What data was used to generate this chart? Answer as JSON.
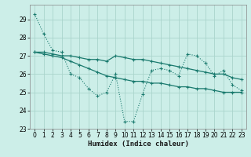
{
  "xlabel": "Humidex (Indice chaleur)",
  "background_color": "#cceee8",
  "grid_color": "#aad4cc",
  "line_color": "#1a7a6e",
  "xlim": [
    -0.5,
    23.5
  ],
  "ylim": [
    23,
    29.8
  ],
  "xticks": [
    0,
    1,
    2,
    3,
    4,
    5,
    6,
    7,
    8,
    9,
    10,
    11,
    12,
    13,
    14,
    15,
    16,
    17,
    18,
    19,
    20,
    21,
    22,
    23
  ],
  "yticks": [
    23,
    24,
    25,
    26,
    27,
    28,
    29
  ],
  "line1": [
    29.3,
    28.2,
    27.3,
    27.2,
    26.0,
    25.8,
    25.2,
    24.8,
    25.0,
    26.0,
    23.4,
    23.4,
    24.9,
    26.2,
    26.3,
    26.2,
    25.9,
    27.1,
    27.0,
    26.6,
    25.9,
    26.2,
    25.4,
    25.1
  ],
  "line2": [
    27.2,
    27.2,
    27.1,
    27.0,
    27.0,
    26.9,
    26.8,
    26.8,
    26.7,
    27.0,
    26.9,
    26.8,
    26.8,
    26.7,
    26.6,
    26.5,
    26.4,
    26.3,
    26.2,
    26.1,
    26.0,
    26.0,
    25.8,
    25.7
  ],
  "line3": [
    27.2,
    27.1,
    27.0,
    26.9,
    26.7,
    26.5,
    26.3,
    26.1,
    25.9,
    25.8,
    25.7,
    25.6,
    25.6,
    25.5,
    25.5,
    25.4,
    25.3,
    25.3,
    25.2,
    25.2,
    25.1,
    25.0,
    25.0,
    25.0
  ]
}
